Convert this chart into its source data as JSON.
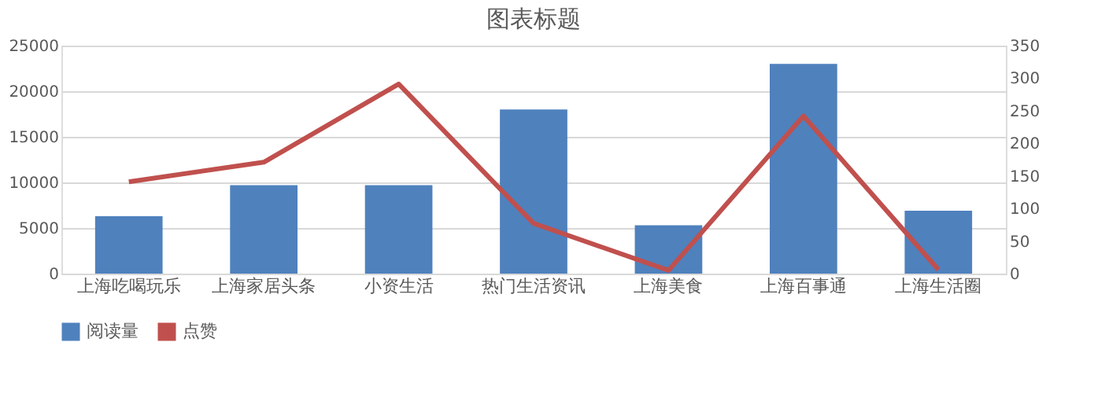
{
  "chart_data": {
    "type": "bar",
    "title": "图表标题",
    "categories": [
      "上海吃喝玩乐",
      "上海家居头条",
      "小资生活",
      "热门生活资讯",
      "上海美食",
      "上海百事通",
      "上海生活圈"
    ],
    "series": [
      {
        "name": "阅读量",
        "color": "#4f81bd",
        "values": [
          6300,
          9700,
          9700,
          18000,
          5300,
          23000,
          6900
        ]
      },
      {
        "name": "点赞",
        "type": "line",
        "axis": "y2",
        "color": "#c0504d",
        "values": [
          141,
          171,
          291,
          77,
          5,
          242,
          6
        ]
      }
    ],
    "ylim": [
      0,
      25000
    ],
    "yticks": [
      0,
      5000,
      10000,
      15000,
      20000,
      25000
    ],
    "y2lim": [
      0,
      350
    ],
    "y2ticks": [
      0,
      50,
      100,
      150,
      200,
      250,
      300,
      350
    ],
    "grid": "y",
    "legend": "bottom",
    "line_style": "solid",
    "marker": "none"
  }
}
